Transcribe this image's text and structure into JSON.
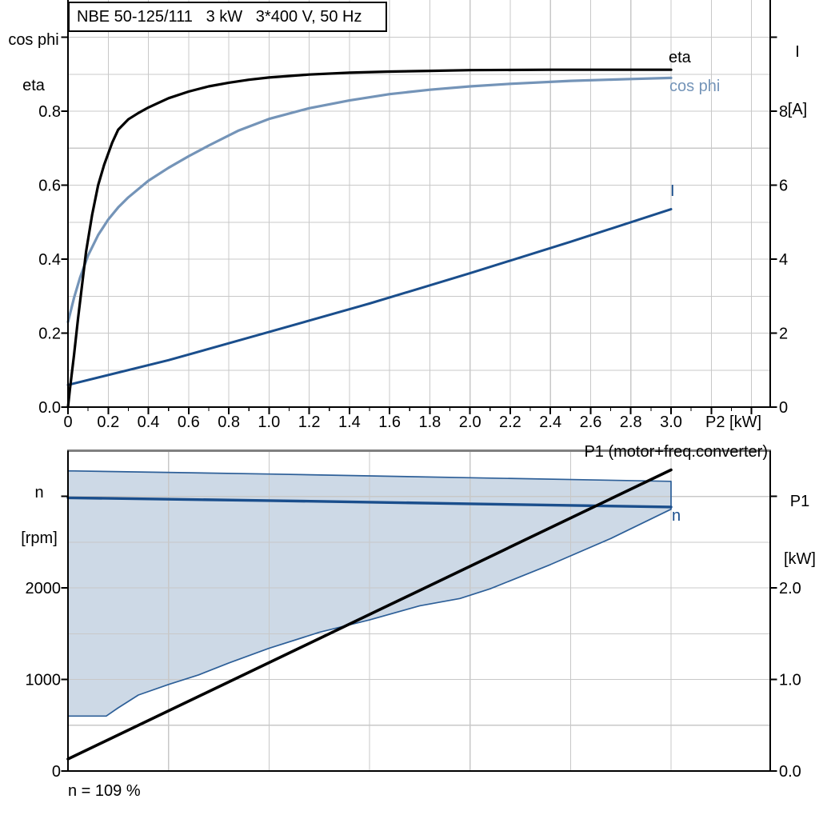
{
  "title_box": {
    "text": "NBE 50-125/111   3 kW   3*400 V, 50 Hz"
  },
  "top_chart": {
    "y_left_title_1": "cos phi",
    "y_left_title_2": "eta",
    "y_right_title_1": "I",
    "y_right_title_2": "[A]",
    "x_title": "P2 [kW]",
    "eta_label": "eta",
    "cos_phi_label": "cos phi",
    "current_label": "I"
  },
  "bottom_chart": {
    "y_left_title_1": "n",
    "y_left_title_2": "[rpm]",
    "y_right_title_1": "P1",
    "y_right_title_2": "[kW]",
    "p1_label": "P1 (motor+freq.converter)",
    "n_label": "n",
    "caption": "n = 109 %"
  },
  "colors": {
    "eta_curve": "#000000",
    "cos_phi_curve": "#7494b8",
    "current_curve": "#1a4e8c",
    "speed_curve": "#1a4e8c",
    "p1_curve": "#000000",
    "band_fill": "#cdd9e6",
    "band_border": "#2d5f98",
    "gridline": "#c8c8c8",
    "axis": "#000000",
    "top_border_gray": "#808080"
  },
  "chart_data": [
    {
      "type": "line",
      "title": "NBE 50-125/111   3 kW   3*400 V, 50 Hz",
      "xlabel": "P2 [kW]",
      "x_range": [
        0,
        3.49
      ],
      "x_major_step": 0.2,
      "x_minor_step": 0.1,
      "x_tick_labels": [
        "0",
        "0.2",
        "0.4",
        "0.6",
        "0.8",
        "1.0",
        "1.2",
        "1.4",
        "1.6",
        "1.8",
        "2.0",
        "2.2",
        "2.4",
        "2.6",
        "2.8",
        "3.0"
      ],
      "y_left": {
        "label": "cos phi / eta",
        "range": [
          0,
          1.1
        ],
        "grid_step": 0.1,
        "tick_step": 0.2,
        "tick_labels": [
          "0.0",
          "0.2",
          "0.4",
          "0.6",
          "0.8"
        ],
        "unlabeled_ticks": [
          1.0
        ]
      },
      "y_right": {
        "label": "I [A]",
        "range": [
          0,
          11
        ],
        "tick_step": 2,
        "tick_labels": [
          "0",
          "2",
          "4",
          "6",
          "8"
        ],
        "unlabeled_ticks": [
          10
        ]
      },
      "grid": true,
      "legend_position": "end-of-curve",
      "series": [
        {
          "name": "I",
          "axis": "right",
          "points": [
            [
              0,
              0.6
            ],
            [
              0.5,
              1.27
            ],
            [
              1.0,
              2.03
            ],
            [
              1.5,
              2.8
            ],
            [
              2.0,
              3.62
            ],
            [
              2.5,
              4.47
            ],
            [
              3.0,
              5.35
            ]
          ]
        },
        {
          "name": "cos phi",
          "axis": "left",
          "points": [
            [
              0,
              0.23
            ],
            [
              0.03,
              0.295
            ],
            [
              0.06,
              0.35
            ],
            [
              0.1,
              0.41
            ],
            [
              0.15,
              0.465
            ],
            [
              0.2,
              0.507
            ],
            [
              0.25,
              0.54
            ],
            [
              0.3,
              0.567
            ],
            [
              0.4,
              0.612
            ],
            [
              0.5,
              0.647
            ],
            [
              0.6,
              0.678
            ],
            [
              0.7,
              0.707
            ],
            [
              0.85,
              0.748
            ],
            [
              1.0,
              0.779
            ],
            [
              1.2,
              0.808
            ],
            [
              1.4,
              0.829
            ],
            [
              1.6,
              0.846
            ],
            [
              1.8,
              0.858
            ],
            [
              2.0,
              0.867
            ],
            [
              2.2,
              0.874
            ],
            [
              2.5,
              0.882
            ],
            [
              2.8,
              0.887
            ],
            [
              3.0,
              0.89
            ]
          ]
        },
        {
          "name": "eta",
          "axis": "left",
          "points": [
            [
              0,
              0
            ],
            [
              0.01,
              0.05
            ],
            [
              0.03,
              0.14
            ],
            [
              0.05,
              0.24
            ],
            [
              0.07,
              0.33
            ],
            [
              0.09,
              0.42
            ],
            [
              0.12,
              0.52
            ],
            [
              0.15,
              0.6
            ],
            [
              0.18,
              0.655
            ],
            [
              0.22,
              0.715
            ],
            [
              0.25,
              0.75
            ],
            [
              0.3,
              0.778
            ],
            [
              0.35,
              0.795
            ],
            [
              0.4,
              0.81
            ],
            [
              0.5,
              0.835
            ],
            [
              0.6,
              0.853
            ],
            [
              0.7,
              0.867
            ],
            [
              0.8,
              0.877
            ],
            [
              0.9,
              0.885
            ],
            [
              1.0,
              0.891
            ],
            [
              1.2,
              0.899
            ],
            [
              1.4,
              0.904
            ],
            [
              1.6,
              0.907
            ],
            [
              1.8,
              0.909
            ],
            [
              2.0,
              0.911
            ],
            [
              2.4,
              0.912
            ],
            [
              3.0,
              0.912
            ]
          ]
        }
      ]
    },
    {
      "type": "line+area",
      "xlabel": "",
      "x_range": [
        0,
        3.5
      ],
      "x_grid_step": 0.5,
      "x_tick_labels": [],
      "y_left": {
        "label": "n [rpm]",
        "range": [
          0,
          3500
        ],
        "grid_step": 500,
        "tick_step": 1000,
        "tick_labels": [
          "0",
          "1000",
          "2000"
        ],
        "unlabeled_ticks": [
          3000
        ]
      },
      "y_right": {
        "label": "P1 [kW]",
        "range": [
          0,
          3.5
        ],
        "tick_step": 1,
        "tick_labels": [
          "0.0",
          "1.0",
          "2.0"
        ],
        "unlabeled_ticks": [
          3.0
        ]
      },
      "grid": true,
      "area": {
        "name": "speed-control-band",
        "upper": [
          [
            0,
            3280
          ],
          [
            1.0,
            3245
          ],
          [
            2.0,
            3205
          ],
          [
            3.0,
            3165
          ]
        ],
        "lower": [
          [
            0,
            600
          ],
          [
            0.19,
            600
          ],
          [
            0.25,
            690
          ],
          [
            0.35,
            830
          ],
          [
            0.5,
            945
          ],
          [
            0.65,
            1050
          ],
          [
            0.8,
            1180
          ],
          [
            1.0,
            1340
          ],
          [
            1.25,
            1515
          ],
          [
            1.5,
            1650
          ],
          [
            1.75,
            1805
          ],
          [
            1.95,
            1885
          ],
          [
            2.1,
            1990
          ],
          [
            2.4,
            2255
          ],
          [
            2.7,
            2540
          ],
          [
            3.0,
            2860
          ]
        ]
      },
      "series": [
        {
          "name": "n",
          "axis": "left",
          "points": [
            [
              0,
              2985
            ],
            [
              1.0,
              2955
            ],
            [
              2.0,
              2920
            ],
            [
              3.0,
              2885
            ]
          ]
        },
        {
          "name": "P1 (motor+freq.converter)",
          "axis": "right",
          "points": [
            [
              0,
              0.13
            ],
            [
              3.0,
              3.29
            ]
          ]
        }
      ],
      "caption": "n = 109 %"
    }
  ]
}
